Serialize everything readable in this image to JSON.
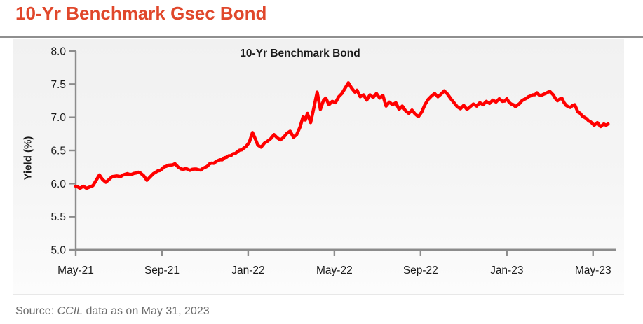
{
  "page": {
    "title": "10-Yr Benchmark Gsec Bond",
    "source_prefix": "Source: ",
    "source_italic": "CCIL",
    "source_suffix": " data as on May 31, 2023"
  },
  "colors": {
    "title": "#e0472b",
    "line": "#ff0000",
    "axis": "#8c8c8c",
    "tick_label": "#1a1a1a",
    "separator": "#8f8f8f",
    "source_text": "#6e6e6e"
  },
  "chart_data": {
    "type": "line",
    "title": "10-Yr Benchmark Bond",
    "xlabel": "",
    "ylabel": "Yield (%)",
    "grid": false,
    "legend": "none",
    "xlim": [
      0,
      25.05
    ],
    "ylim": [
      5.0,
      8.0
    ],
    "x_tick_months": [
      0,
      4,
      8,
      12,
      16,
      20,
      24
    ],
    "x_tick_labels": [
      "May-21",
      "Sep-21",
      "Jan-22",
      "May-22",
      "Sep-22",
      "Jan-23",
      "May-23"
    ],
    "y_ticks": [
      8.0,
      7.5,
      7.0,
      6.5,
      6.0,
      5.5,
      5.0
    ],
    "y_tick_labels": [
      "8.0",
      "7.5",
      "7.0",
      "6.5",
      "6.0",
      "5.5",
      "5.0"
    ],
    "x_unit": "months since May-2021",
    "y_unit": "percent",
    "series": [
      {
        "name": "10-Yr Benchmark Bond",
        "color": "#ff0000",
        "points": [
          [
            0,
            5.96
          ],
          [
            0.2,
            5.93
          ],
          [
            0.35,
            5.96
          ],
          [
            0.5,
            5.93
          ],
          [
            0.65,
            5.95
          ],
          [
            0.8,
            5.97
          ],
          [
            0.95,
            6.05
          ],
          [
            1.1,
            6.13
          ],
          [
            1.25,
            6.06
          ],
          [
            1.4,
            6.02
          ],
          [
            1.6,
            6.08
          ],
          [
            1.8,
            6.11
          ],
          [
            2.0,
            6.11
          ],
          [
            2.2,
            6.13
          ],
          [
            2.4,
            6.15
          ],
          [
            2.6,
            6.14
          ],
          [
            2.8,
            6.16
          ],
          [
            3.0,
            6.16
          ],
          [
            3.15,
            6.12
          ],
          [
            3.3,
            6.05
          ],
          [
            3.45,
            6.1
          ],
          [
            3.6,
            6.15
          ],
          [
            3.8,
            6.19
          ],
          [
            4.0,
            6.22
          ],
          [
            4.2,
            6.26
          ],
          [
            4.4,
            6.28
          ],
          [
            4.6,
            6.3
          ],
          [
            4.75,
            6.25
          ],
          [
            4.9,
            6.22
          ],
          [
            5.1,
            6.23
          ],
          [
            5.3,
            6.2
          ],
          [
            5.5,
            6.22
          ],
          [
            5.7,
            6.21
          ],
          [
            5.9,
            6.23
          ],
          [
            6.1,
            6.26
          ],
          [
            6.3,
            6.31
          ],
          [
            6.5,
            6.33
          ],
          [
            6.7,
            6.36
          ],
          [
            6.9,
            6.39
          ],
          [
            7.1,
            6.42
          ],
          [
            7.3,
            6.45
          ],
          [
            7.5,
            6.48
          ],
          [
            7.7,
            6.51
          ],
          [
            7.9,
            6.56
          ],
          [
            8.05,
            6.62
          ],
          [
            8.2,
            6.77
          ],
          [
            8.3,
            6.7
          ],
          [
            8.45,
            6.58
          ],
          [
            8.6,
            6.55
          ],
          [
            8.75,
            6.61
          ],
          [
            8.9,
            6.64
          ],
          [
            9.05,
            6.68
          ],
          [
            9.2,
            6.74
          ],
          [
            9.35,
            6.69
          ],
          [
            9.5,
            6.66
          ],
          [
            9.65,
            6.7
          ],
          [
            9.8,
            6.76
          ],
          [
            9.95,
            6.79
          ],
          [
            10.1,
            6.7
          ],
          [
            10.25,
            6.74
          ],
          [
            10.4,
            6.85
          ],
          [
            10.55,
            7.01
          ],
          [
            10.65,
            6.96
          ],
          [
            10.75,
            7.06
          ],
          [
            10.9,
            6.92
          ],
          [
            11.05,
            7.15
          ],
          [
            11.2,
            7.38
          ],
          [
            11.35,
            7.12
          ],
          [
            11.5,
            7.26
          ],
          [
            11.6,
            7.29
          ],
          [
            11.75,
            7.19
          ],
          [
            11.9,
            7.24
          ],
          [
            12.05,
            7.22
          ],
          [
            12.2,
            7.31
          ],
          [
            12.35,
            7.36
          ],
          [
            12.5,
            7.44
          ],
          [
            12.65,
            7.52
          ],
          [
            12.8,
            7.44
          ],
          [
            12.95,
            7.38
          ],
          [
            13.05,
            7.41
          ],
          [
            13.2,
            7.31
          ],
          [
            13.35,
            7.34
          ],
          [
            13.5,
            7.26
          ],
          [
            13.65,
            7.34
          ],
          [
            13.8,
            7.3
          ],
          [
            13.95,
            7.36
          ],
          [
            14.1,
            7.29
          ],
          [
            14.25,
            7.33
          ],
          [
            14.4,
            7.17
          ],
          [
            14.55,
            7.23
          ],
          [
            14.7,
            7.19
          ],
          [
            14.85,
            7.22
          ],
          [
            15.0,
            7.12
          ],
          [
            15.15,
            7.17
          ],
          [
            15.3,
            7.1
          ],
          [
            15.45,
            7.06
          ],
          [
            15.6,
            7.11
          ],
          [
            15.75,
            7.05
          ],
          [
            15.9,
            7.01
          ],
          [
            16.05,
            7.08
          ],
          [
            16.2,
            7.19
          ],
          [
            16.35,
            7.27
          ],
          [
            16.5,
            7.32
          ],
          [
            16.65,
            7.36
          ],
          [
            16.8,
            7.31
          ],
          [
            16.95,
            7.35
          ],
          [
            17.1,
            7.4
          ],
          [
            17.25,
            7.35
          ],
          [
            17.4,
            7.28
          ],
          [
            17.55,
            7.22
          ],
          [
            17.7,
            7.16
          ],
          [
            17.85,
            7.13
          ],
          [
            18.0,
            7.18
          ],
          [
            18.15,
            7.12
          ],
          [
            18.3,
            7.16
          ],
          [
            18.45,
            7.2
          ],
          [
            18.6,
            7.17
          ],
          [
            18.75,
            7.22
          ],
          [
            18.9,
            7.19
          ],
          [
            19.05,
            7.24
          ],
          [
            19.2,
            7.21
          ],
          [
            19.35,
            7.26
          ],
          [
            19.5,
            7.23
          ],
          [
            19.65,
            7.28
          ],
          [
            19.8,
            7.24
          ],
          [
            20.0,
            7.28
          ],
          [
            20.2,
            7.2
          ],
          [
            20.4,
            7.16
          ],
          [
            20.6,
            7.21
          ],
          [
            20.8,
            7.27
          ],
          [
            21.0,
            7.31
          ],
          [
            21.2,
            7.34
          ],
          [
            21.4,
            7.37
          ],
          [
            21.6,
            7.33
          ],
          [
            21.8,
            7.36
          ],
          [
            22.0,
            7.39
          ],
          [
            22.15,
            7.34
          ],
          [
            22.35,
            7.25
          ],
          [
            22.55,
            7.29
          ],
          [
            22.75,
            7.18
          ],
          [
            22.95,
            7.15
          ],
          [
            23.15,
            7.19
          ],
          [
            23.3,
            7.08
          ],
          [
            23.5,
            7.02
          ],
          [
            23.7,
            6.98
          ],
          [
            23.9,
            6.93
          ],
          [
            24.05,
            6.88
          ],
          [
            24.2,
            6.92
          ],
          [
            24.35,
            6.86
          ],
          [
            24.5,
            6.9
          ],
          [
            24.6,
            6.88
          ],
          [
            24.7,
            6.9
          ]
        ]
      }
    ],
    "render": {
      "noise_amplitude": 0.016,
      "step_months": 0.12,
      "seed": 42,
      "line_width": 4.6,
      "axis_width": 2.4,
      "tick_length": 9
    }
  }
}
